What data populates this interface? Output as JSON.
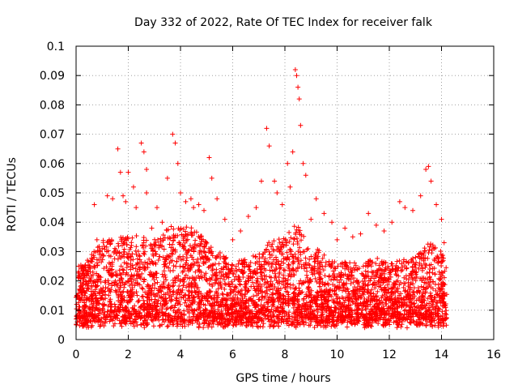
{
  "chart_data": {
    "type": "scatter",
    "title": "Day 332 of 2022, Rate Of TEC Index for receiver falk",
    "xlabel": "GPS time / hours",
    "ylabel": "ROTI / TECUs",
    "xlim": [
      0,
      16
    ],
    "ylim": [
      0,
      0.1
    ],
    "x_ticks": [
      "0",
      "2",
      "4",
      "6",
      "8",
      "10",
      "12",
      "14",
      "16"
    ],
    "y_ticks": [
      "0",
      "0.01",
      "0.02",
      "0.03",
      "0.04",
      "0.05",
      "0.06",
      "0.07",
      "0.08",
      "0.09",
      "0.1"
    ],
    "grid": true,
    "marker": "+",
    "colors": {
      "points": "#ff0000",
      "grid": "#a0a0a0",
      "axes": "#000000"
    },
    "x_range_of_data": [
      0,
      14.2
    ],
    "series": [
      {
        "x": [
          0.1,
          0.2,
          0.3,
          0.5,
          0.7,
          0.8,
          1.0,
          1.2,
          1.4,
          1.6,
          1.7,
          1.8,
          1.9,
          2.0,
          2.2,
          2.3,
          2.5,
          2.6,
          2.7,
          2.7,
          2.9,
          3.1,
          3.3,
          3.5,
          3.7,
          3.8,
          3.9,
          4.0,
          4.2,
          4.4,
          4.5,
          4.7,
          4.9,
          5.1,
          5.2,
          5.4,
          5.7,
          6.0,
          6.3,
          6.6,
          6.9,
          7.1,
          7.3,
          7.4,
          7.6,
          7.7,
          7.9,
          8.1,
          8.2,
          8.3,
          8.4,
          8.45,
          8.5,
          8.55,
          8.6,
          8.7,
          8.8,
          9.0,
          9.2,
          9.5,
          9.8,
          10.0,
          10.3,
          10.6,
          10.9,
          11.2,
          11.5,
          11.8,
          12.1,
          12.4,
          12.6,
          12.9,
          13.2,
          13.4,
          13.5,
          13.6,
          13.8,
          14.0,
          14.1
        ],
        "y": [
          0.025,
          0.016,
          0.019,
          0.021,
          0.046,
          0.034,
          0.031,
          0.049,
          0.048,
          0.065,
          0.057,
          0.049,
          0.047,
          0.057,
          0.052,
          0.045,
          0.067,
          0.064,
          0.05,
          0.058,
          0.038,
          0.045,
          0.04,
          0.055,
          0.07,
          0.067,
          0.06,
          0.05,
          0.047,
          0.048,
          0.045,
          0.046,
          0.044,
          0.062,
          0.055,
          0.048,
          0.041,
          0.034,
          0.037,
          0.042,
          0.045,
          0.054,
          0.072,
          0.066,
          0.054,
          0.05,
          0.046,
          0.06,
          0.052,
          0.064,
          0.092,
          0.09,
          0.086,
          0.082,
          0.073,
          0.06,
          0.056,
          0.041,
          0.048,
          0.043,
          0.04,
          0.034,
          0.038,
          0.035,
          0.036,
          0.043,
          0.039,
          0.037,
          0.04,
          0.047,
          0.045,
          0.044,
          0.049,
          0.058,
          0.059,
          0.054,
          0.046,
          0.041,
          0.033
        ]
      }
    ]
  }
}
